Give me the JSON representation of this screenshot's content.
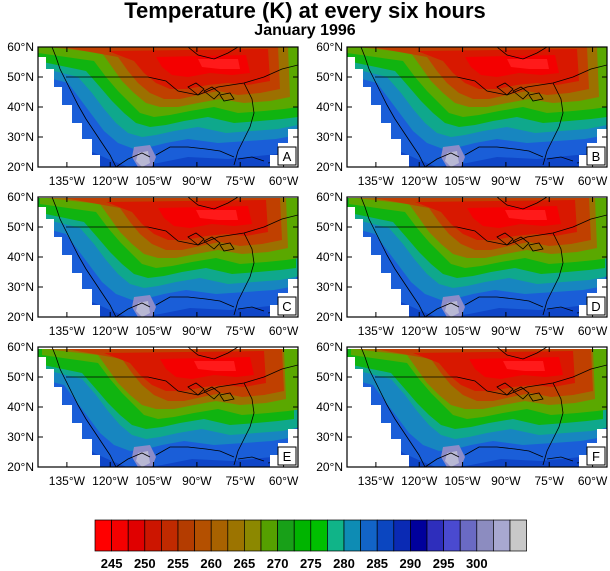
{
  "title": "Temperature (K) at every six hours",
  "subtitle": "January 1996",
  "panels": [
    {
      "label": "A",
      "variant": 0
    },
    {
      "label": "B",
      "variant": 0
    },
    {
      "label": "C",
      "variant": 1
    },
    {
      "label": "D",
      "variant": 1
    },
    {
      "label": "E",
      "variant": 2
    },
    {
      "label": "F",
      "variant": 2
    }
  ],
  "lat_labels": [
    "60°N",
    "50°N",
    "40°N",
    "30°N",
    "20°N"
  ],
  "lon_labels": [
    "135°W",
    "120°W",
    "105°W",
    "90°W",
    "75°W",
    "60°W"
  ],
  "colorbar": {
    "labels": [
      "245",
      "250",
      "255",
      "260",
      "265",
      "270",
      "275",
      "280",
      "285",
      "290",
      "295",
      "300"
    ],
    "colors": [
      "#ff0000",
      "#f40000",
      "#e00000",
      "#cc1500",
      "#c02a00",
      "#b43c00",
      "#b45000",
      "#a86200",
      "#9c7400",
      "#8c8800",
      "#55a000",
      "#18a018",
      "#00b400",
      "#00c000",
      "#10b488",
      "#0e8cb4",
      "#1264c8",
      "#0b46c0",
      "#0a2ab4",
      "#00009c",
      "#2e2ebc",
      "#4a4ad0",
      "#6a6ac4",
      "#8c8cc0",
      "#a8a8d0",
      "#c8c8c8"
    ]
  }
}
